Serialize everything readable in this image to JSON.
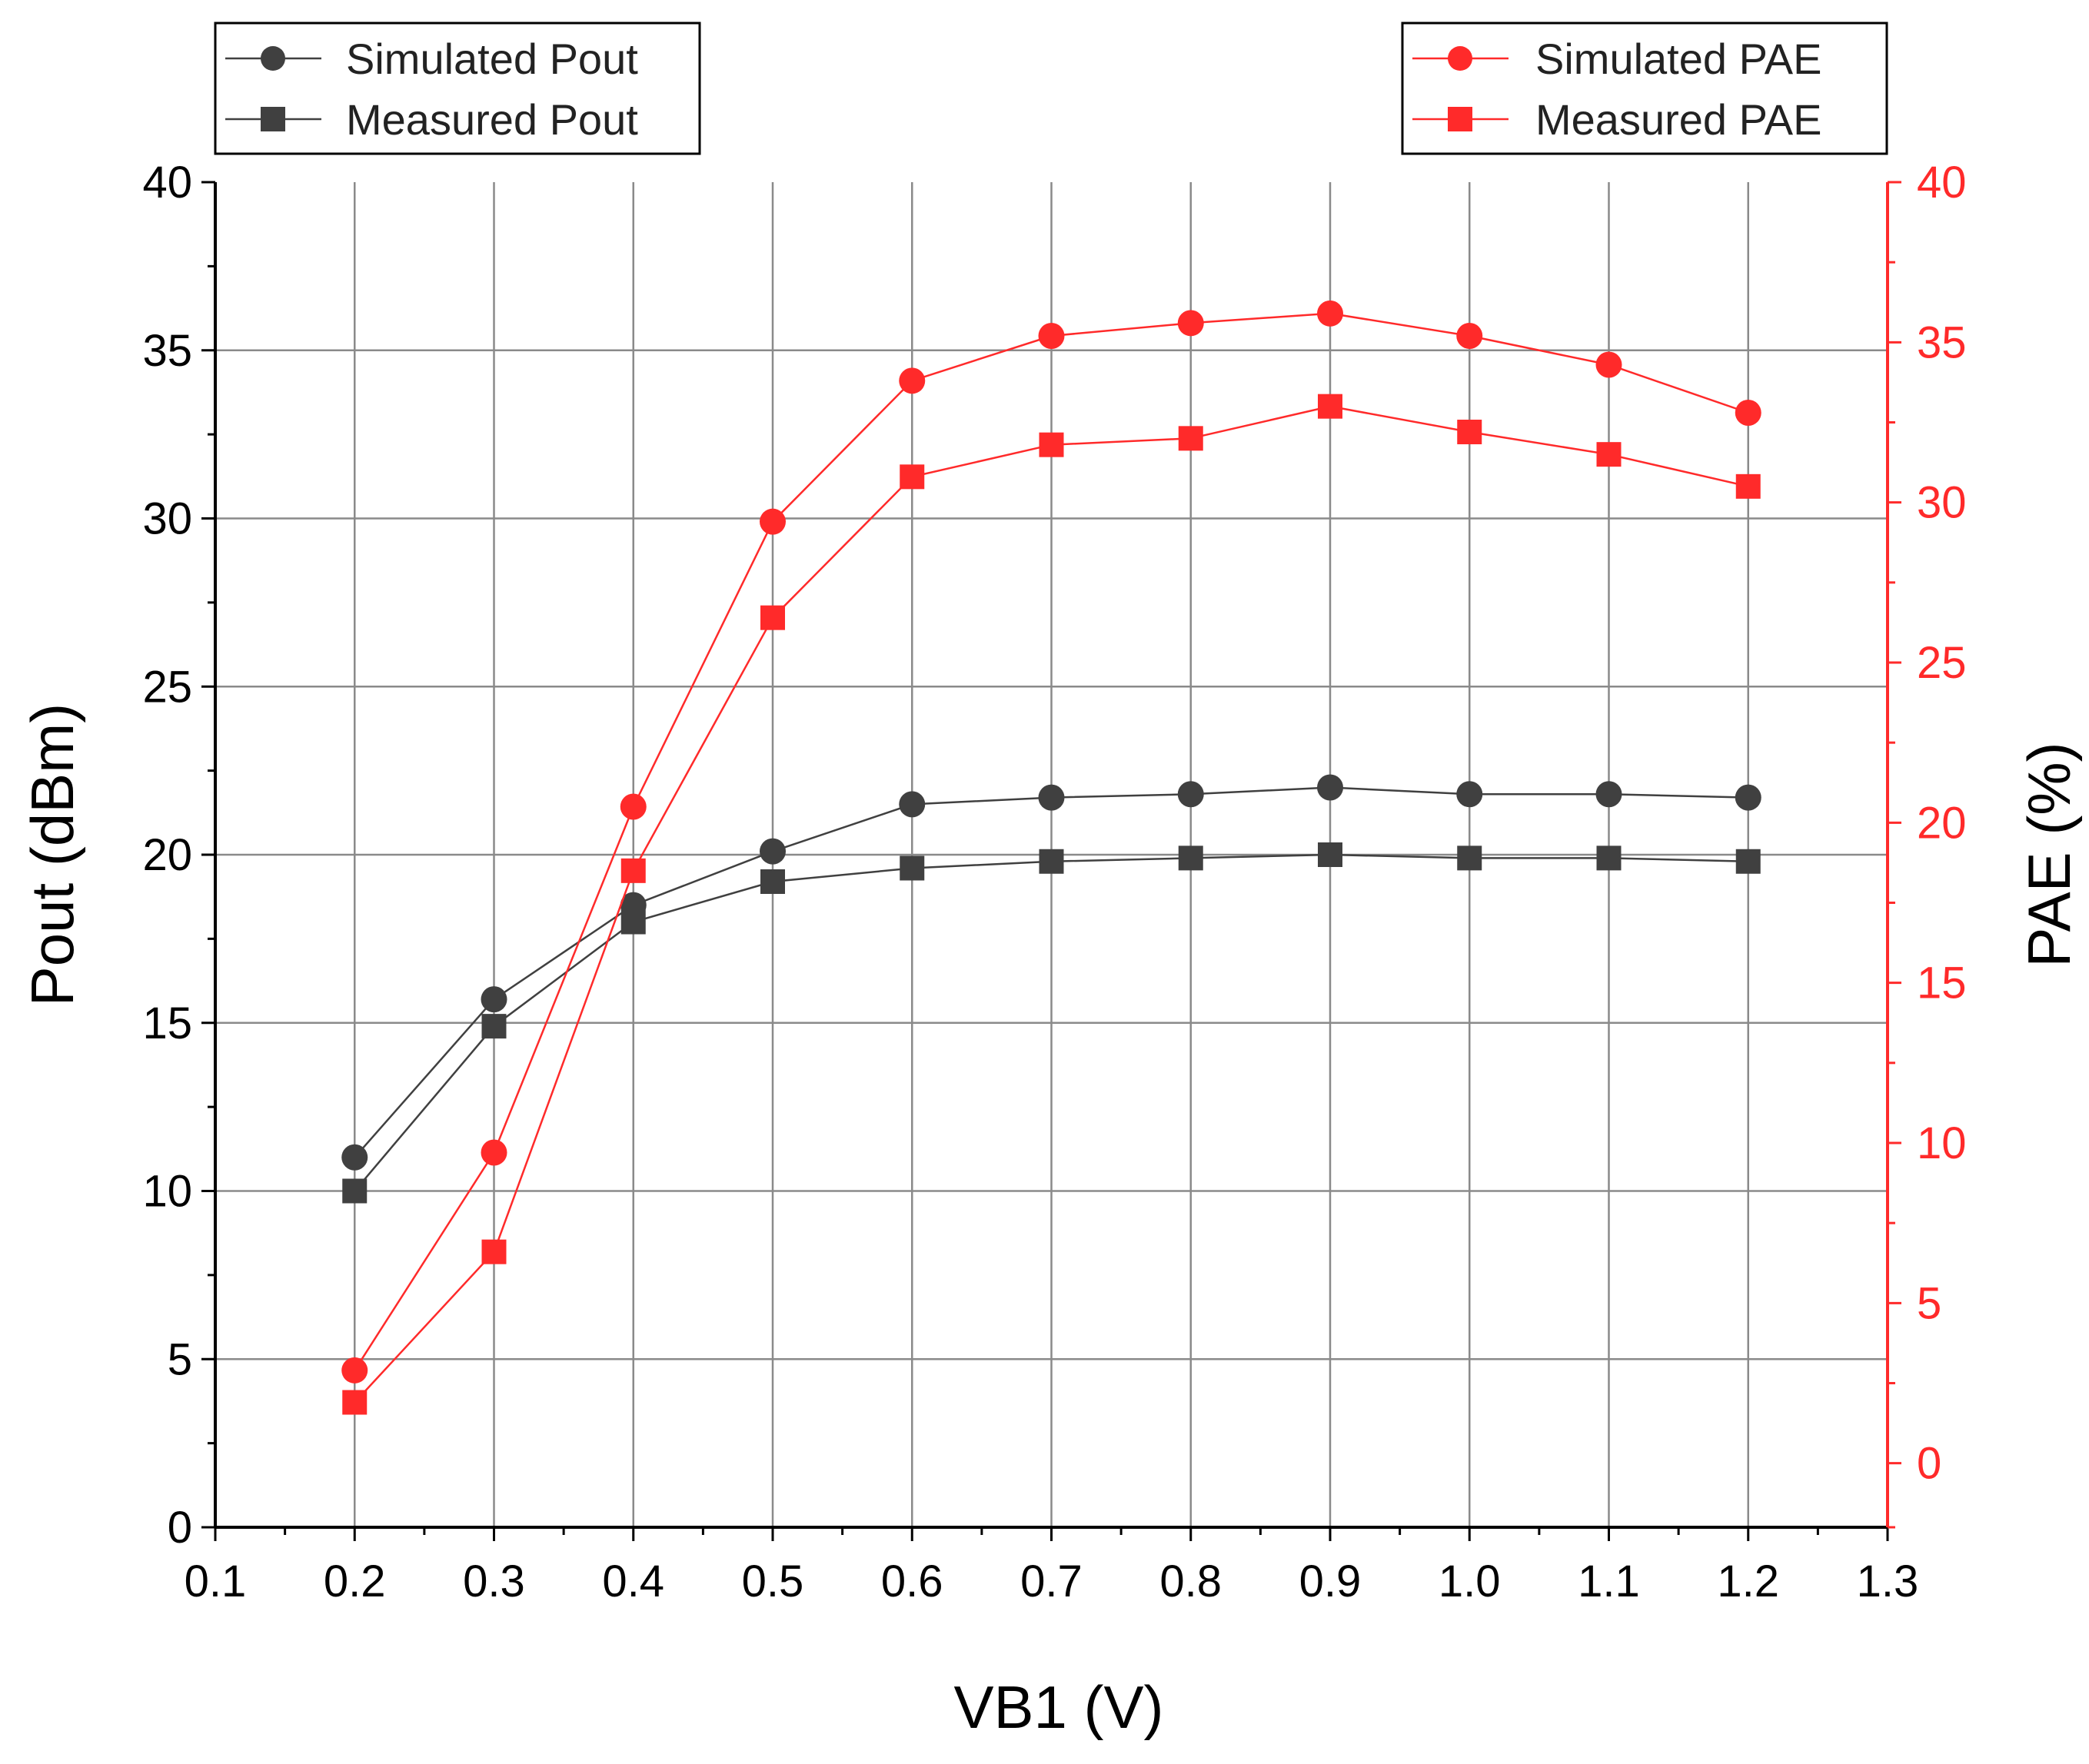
{
  "chart_data": {
    "type": "line",
    "x": [
      0.2,
      0.3,
      0.4,
      0.5,
      0.6,
      0.7,
      0.8,
      0.9,
      1.0,
      1.1,
      1.2
    ],
    "xlabel": "VB1 (V)",
    "ylabel_left": "Pout (dBm)",
    "ylabel_right": "PAE (%)",
    "xlim": [
      0.1,
      1.3
    ],
    "ylim_left": [
      0,
      40
    ],
    "ylim_right": [
      -2,
      40
    ],
    "x_ticks": [
      "0.1",
      "0.2",
      "0.3",
      "0.4",
      "0.5",
      "0.6",
      "0.7",
      "0.8",
      "0.9",
      "1.0",
      "1.1",
      "1.2",
      "1.3"
    ],
    "y_left_ticks": [
      "0",
      "5",
      "10",
      "15",
      "20",
      "25",
      "30",
      "35",
      "40"
    ],
    "y_right_ticks": [
      "0",
      "5",
      "10",
      "15",
      "20",
      "25",
      "30",
      "35",
      "40"
    ],
    "grid": true,
    "series": [
      {
        "name": "Simulated Pout",
        "axis": "left",
        "marker": "circle",
        "color": "#404040",
        "values": [
          11.0,
          15.7,
          18.5,
          20.1,
          21.5,
          21.7,
          21.8,
          22.0,
          21.8,
          21.8,
          21.7
        ]
      },
      {
        "name": "Measured Pout",
        "axis": "left",
        "marker": "square",
        "color": "#404040",
        "values": [
          10.0,
          14.9,
          18.0,
          19.2,
          19.6,
          19.8,
          19.9,
          20.0,
          19.9,
          19.9,
          19.8
        ]
      },
      {
        "name": "Simulated PAE",
        "axis": "right",
        "marker": "circle",
        "color": "#ff2a2a",
        "values": [
          2.9,
          9.7,
          20.5,
          29.4,
          33.8,
          35.2,
          35.6,
          35.9,
          35.2,
          34.3,
          32.8
        ]
      },
      {
        "name": "Measured PAE",
        "axis": "right",
        "marker": "square",
        "color": "#ff2a2a",
        "values": [
          1.9,
          6.6,
          18.5,
          26.4,
          30.8,
          31.8,
          32.0,
          33.0,
          32.2,
          31.5,
          30.5
        ]
      }
    ],
    "legend_left": [
      "Simulated Pout",
      "Measured Pout"
    ],
    "legend_right": [
      "Simulated PAE",
      "Measured PAE"
    ]
  }
}
